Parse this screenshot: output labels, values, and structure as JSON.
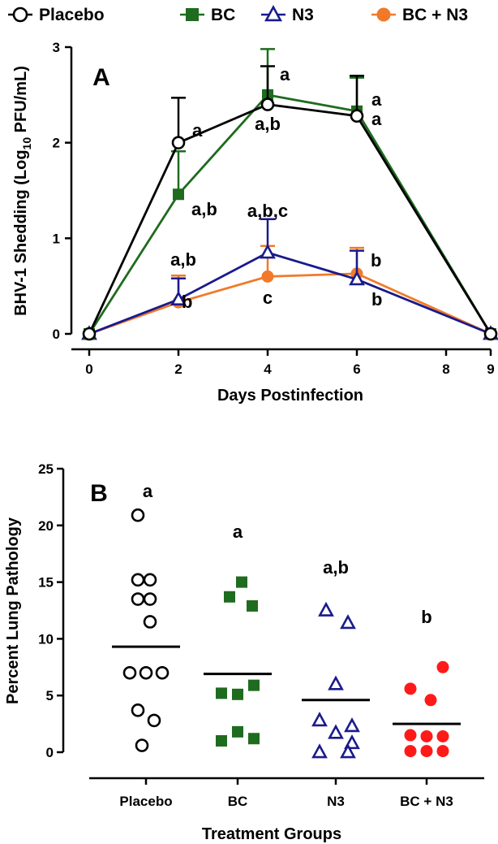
{
  "legend": [
    {
      "name": "Placebo",
      "marker": "circle-open",
      "color": "#000000"
    },
    {
      "name": "BC",
      "marker": "square-filled",
      "color": "#1f6b1f"
    },
    {
      "name": "N3",
      "marker": "triangle-open",
      "color": "#1a1a8c"
    },
    {
      "name": "BC + N3",
      "marker": "circle-filled",
      "color": "#f07a2a"
    }
  ],
  "chart_data": [
    {
      "panel": "A",
      "type": "line",
      "xlabel": "Days Postinfection",
      "ylabel_parts": [
        "BHV-1 Shedding (Log",
        "10",
        " PFU/mL)"
      ],
      "xlim": [
        0,
        9
      ],
      "ylim": [
        0,
        3
      ],
      "xticks": [
        0,
        2,
        4,
        6,
        8,
        9
      ],
      "yticks": [
        0,
        1,
        2,
        3
      ],
      "series": [
        {
          "name": "Placebo",
          "color": "#000000",
          "marker": "circle-open",
          "x": [
            0,
            2,
            4,
            6,
            9
          ],
          "y": [
            0,
            2.0,
            2.4,
            2.28,
            0
          ],
          "err": [
            0,
            0.47,
            0.4,
            0.42,
            0
          ]
        },
        {
          "name": "BC",
          "color": "#1f6b1f",
          "marker": "square-filled",
          "x": [
            0,
            2,
            4,
            6,
            9
          ],
          "y": [
            0,
            1.46,
            2.5,
            2.33,
            0
          ],
          "err": [
            0,
            0.45,
            0.48,
            0.35,
            0
          ]
        },
        {
          "name": "N3",
          "color": "#1a1a8c",
          "marker": "triangle-open",
          "x": [
            0,
            2,
            4,
            6,
            9
          ],
          "y": [
            0,
            0.36,
            0.85,
            0.57,
            0
          ],
          "err": [
            0,
            0.22,
            0.35,
            0.3,
            0
          ]
        },
        {
          "name": "BC + N3",
          "color": "#f07a2a",
          "marker": "circle-filled",
          "x": [
            0,
            2,
            4,
            6,
            9
          ],
          "y": [
            0,
            0.33,
            0.6,
            0.63,
            0
          ],
          "err": [
            0,
            0.28,
            0.32,
            0.27,
            0
          ]
        }
      ],
      "annotations": [
        {
          "text": "a",
          "x": 2,
          "series": "Placebo"
        },
        {
          "text": "a,b",
          "x": 2,
          "series": "BC"
        },
        {
          "text": "a,b",
          "x": 2,
          "series": "N3"
        },
        {
          "text": "b",
          "x": 2,
          "series": "BC + N3"
        },
        {
          "text": "a",
          "x": 4,
          "series": "BC"
        },
        {
          "text": "a,b",
          "x": 4,
          "series": "Placebo"
        },
        {
          "text": "a,b,c",
          "x": 4,
          "series": "N3"
        },
        {
          "text": "c",
          "x": 4,
          "series": "BC + N3"
        },
        {
          "text": "a",
          "x": 6,
          "series": "BC"
        },
        {
          "text": "a",
          "x": 6,
          "series": "Placebo"
        },
        {
          "text": "b",
          "x": 6,
          "series": "BC + N3"
        },
        {
          "text": "b",
          "x": 6,
          "series": "N3"
        }
      ]
    },
    {
      "panel": "B",
      "type": "scatter",
      "xlabel": "Treatment Groups",
      "ylabel": "Percent Lung Pathology",
      "ylim": [
        0,
        25
      ],
      "yticks": [
        0,
        5,
        10,
        15,
        20,
        25
      ],
      "categories": [
        "Placebo",
        "BC",
        "N3",
        "BC + N3"
      ],
      "groups": [
        {
          "name": "Placebo",
          "color": "#000000",
          "marker": "circle-open",
          "letter": "a",
          "mean": 9.3,
          "points": [
            [
              -0.1,
              20.9
            ],
            [
              0.05,
              15.2
            ],
            [
              -0.1,
              15.2
            ],
            [
              0.05,
              13.5
            ],
            [
              -0.1,
              13.5
            ],
            [
              0.05,
              11.5
            ],
            [
              -0.2,
              7.0
            ],
            [
              0.0,
              7.0
            ],
            [
              0.2,
              7.0
            ],
            [
              -0.1,
              3.7
            ],
            [
              0.1,
              2.8
            ],
            [
              -0.05,
              0.6
            ]
          ]
        },
        {
          "name": "BC",
          "color": "#1f6b1f",
          "marker": "square-filled",
          "letter": "a",
          "mean": 6.9,
          "points": [
            [
              0.05,
              15.0
            ],
            [
              -0.1,
              13.7
            ],
            [
              0.18,
              12.9
            ],
            [
              -0.2,
              5.2
            ],
            [
              0.0,
              5.1
            ],
            [
              0.2,
              5.9
            ],
            [
              0.0,
              1.8
            ],
            [
              -0.2,
              1.0
            ],
            [
              0.2,
              1.2
            ]
          ]
        },
        {
          "name": "N3",
          "color": "#1a1a8c",
          "marker": "triangle-open",
          "letter": "a,b",
          "mean": 4.6,
          "points": [
            [
              -0.12,
              12.5
            ],
            [
              0.15,
              11.4
            ],
            [
              0.0,
              6.0
            ],
            [
              -0.2,
              2.8
            ],
            [
              0.2,
              2.3
            ],
            [
              0.0,
              1.7
            ],
            [
              0.2,
              0.8
            ],
            [
              -0.2,
              0.0
            ],
            [
              0.15,
              0.0
            ]
          ]
        },
        {
          "name": "BC + N3",
          "color": "#ff1a1a",
          "marker": "circle-filled",
          "letter": "b",
          "mean": 2.5,
          "points": [
            [
              0.2,
              7.5
            ],
            [
              -0.2,
              5.6
            ],
            [
              0.05,
              4.6
            ],
            [
              -0.2,
              1.5
            ],
            [
              0.0,
              1.4
            ],
            [
              0.2,
              1.4
            ],
            [
              -0.2,
              0.1
            ],
            [
              0.0,
              0.1
            ],
            [
              0.2,
              0.1
            ]
          ]
        }
      ]
    }
  ]
}
